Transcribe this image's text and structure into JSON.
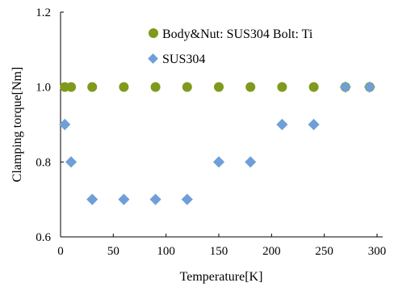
{
  "chart_data": {
    "type": "scatter",
    "title": "",
    "xlabel": "Temperature[K]",
    "ylabel": "Clamping torque[Nm]",
    "xlim": [
      0,
      300
    ],
    "ylim": [
      0.6,
      1.2
    ],
    "xticks": [
      "0",
      "50",
      "100",
      "150",
      "200",
      "250",
      "300"
    ],
    "yticks": [
      "0.6",
      "0.8",
      "1.0",
      "1.2"
    ],
    "grid": false,
    "legend_position": "top-right",
    "series": [
      {
        "name": "Body&Nut: SUS304 Bolt: Ti",
        "marker": "circle",
        "color": "#7f9a1c",
        "x": [
          4,
          10,
          30,
          60,
          90,
          120,
          150,
          180,
          210,
          240,
          270,
          293
        ],
        "y": [
          1.0,
          1.0,
          1.0,
          1.0,
          1.0,
          1.0,
          1.0,
          1.0,
          1.0,
          1.0,
          1.0,
          1.0
        ]
      },
      {
        "name": "SUS304",
        "marker": "diamond",
        "color": "#6f9fd8",
        "x": [
          4,
          10,
          30,
          60,
          90,
          120,
          150,
          180,
          210,
          240,
          270,
          293
        ],
        "y": [
          0.9,
          0.8,
          0.7,
          0.7,
          0.7,
          0.7,
          0.8,
          0.8,
          0.9,
          0.9,
          1.0,
          1.0
        ]
      }
    ]
  }
}
